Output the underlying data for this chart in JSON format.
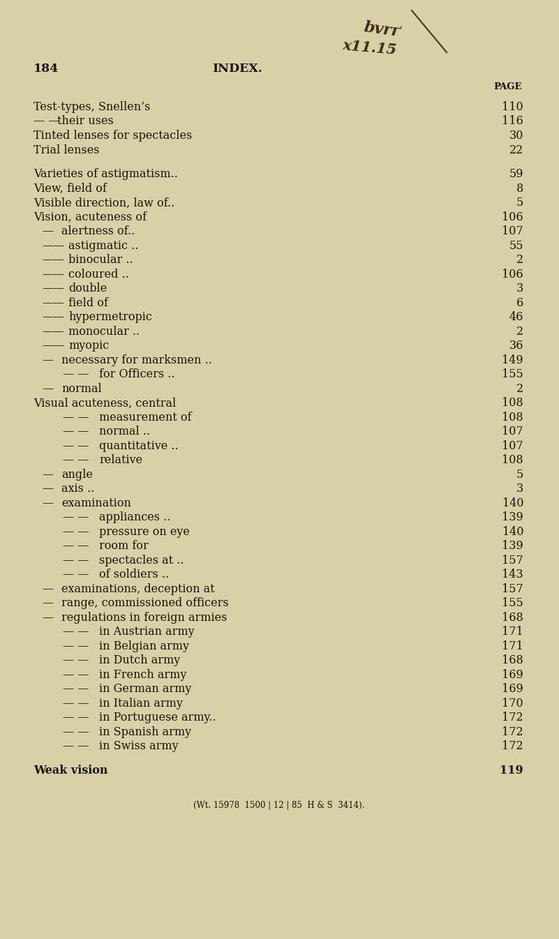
{
  "bg_color": "#d9d0a8",
  "page_number": "184",
  "header_center": "INDEX.",
  "page_label": "PAGE",
  "text_color": "#1a1208",
  "font_size": 11.5,
  "entries": [
    {
      "indent": 0,
      "dash": "",
      "text": "Test-types, Snellen’s",
      "page": "110"
    },
    {
      "indent": 0,
      "dash": "— —",
      "text": "their uses",
      "page": "116"
    },
    {
      "indent": 0,
      "dash": "",
      "text": "Tinted lenses for spectacles",
      "page": "30"
    },
    {
      "indent": 0,
      "dash": "",
      "text": "Trial lenses",
      "page": "22"
    },
    {
      "indent": -1,
      "dash": "",
      "text": "",
      "page": ""
    },
    {
      "indent": 0,
      "dash": "",
      "text": "Varieties of astigmatism..",
      "page": "59"
    },
    {
      "indent": 0,
      "dash": "",
      "text": "View, field of",
      "page": "8"
    },
    {
      "indent": 0,
      "dash": "",
      "text": "Visible direction, law of..",
      "page": "5"
    },
    {
      "indent": 0,
      "dash": "",
      "text": "Vision, acuteness of",
      "page": "106"
    },
    {
      "indent": 1,
      "dash": "—",
      "text": "alertness of..",
      "page": "107"
    },
    {
      "indent": 1,
      "dash": "——",
      "text": "astigmatic ..",
      "page": "55"
    },
    {
      "indent": 1,
      "dash": "——",
      "text": "binocular ..",
      "page": "2"
    },
    {
      "indent": 1,
      "dash": "——",
      "text": "coloured ..",
      "page": "106"
    },
    {
      "indent": 1,
      "dash": "——",
      "text": "double",
      "page": "3"
    },
    {
      "indent": 1,
      "dash": "——",
      "text": "field of",
      "page": "6"
    },
    {
      "indent": 1,
      "dash": "——",
      "text": "hypermetropic",
      "page": "46"
    },
    {
      "indent": 1,
      "dash": "——",
      "text": "monocular ..",
      "page": "2"
    },
    {
      "indent": 1,
      "dash": "——",
      "text": "myopic",
      "page": "36"
    },
    {
      "indent": 1,
      "dash": "—",
      "text": "necessary for marksmen ..",
      "page": "149"
    },
    {
      "indent": 2,
      "dash": "— —",
      "text": "for Officers ..",
      "page": "155"
    },
    {
      "indent": 1,
      "dash": "—",
      "text": "normal",
      "page": "2"
    },
    {
      "indent": 0,
      "dash": "",
      "text": "Visual acuteness, central",
      "page": "108"
    },
    {
      "indent": 2,
      "dash": "— —",
      "text": "measurement of",
      "page": "108"
    },
    {
      "indent": 2,
      "dash": "— —",
      "text": "normal ..",
      "page": "107"
    },
    {
      "indent": 2,
      "dash": "— —",
      "text": "quantitative ..",
      "page": "107"
    },
    {
      "indent": 2,
      "dash": "— —",
      "text": "relative",
      "page": "108"
    },
    {
      "indent": 1,
      "dash": "—",
      "text": "angle",
      "page": "5"
    },
    {
      "indent": 1,
      "dash": "—",
      "text": "axis ..",
      "page": "3"
    },
    {
      "indent": 1,
      "dash": "—",
      "text": "examination",
      "page": "140"
    },
    {
      "indent": 2,
      "dash": "— —",
      "text": "appliances ..",
      "page": "139"
    },
    {
      "indent": 2,
      "dash": "— —",
      "text": "pressure on eye",
      "page": "140"
    },
    {
      "indent": 2,
      "dash": "— —",
      "text": "room for",
      "page": "139"
    },
    {
      "indent": 2,
      "dash": "— —",
      "text": "spectacles at ..",
      "page": "157"
    },
    {
      "indent": 2,
      "dash": "— —",
      "text": "of soldiers ..",
      "page": "143"
    },
    {
      "indent": 1,
      "dash": "—",
      "text": "examinations, deception at",
      "page": "157"
    },
    {
      "indent": 1,
      "dash": "—",
      "text": "range, commissioned officers",
      "page": "155"
    },
    {
      "indent": 1,
      "dash": "—",
      "text": "regulations in foreign armies",
      "page": "168"
    },
    {
      "indent": 2,
      "dash": "— —",
      "text": "in Austrian army",
      "page": "171"
    },
    {
      "indent": 2,
      "dash": "— —",
      "text": "in Belgian army",
      "page": "171"
    },
    {
      "indent": 2,
      "dash": "— —",
      "text": "in Dutch army",
      "page": "168"
    },
    {
      "indent": 2,
      "dash": "— —",
      "text": "in French army",
      "page": "169"
    },
    {
      "indent": 2,
      "dash": "— —",
      "text": "in German army",
      "page": "169"
    },
    {
      "indent": 2,
      "dash": "— —",
      "text": "in Italian army",
      "page": "170"
    },
    {
      "indent": 2,
      "dash": "— —",
      "text": "in Portuguese army..",
      "page": "172"
    },
    {
      "indent": 2,
      "dash": "— —",
      "text": "in Spanish army",
      "page": "172"
    },
    {
      "indent": 2,
      "dash": "— —",
      "text": "in Swiss army",
      "page": "172"
    },
    {
      "indent": -1,
      "dash": "",
      "text": "",
      "page": ""
    },
    {
      "indent": 0,
      "dash": "",
      "text": "Weak vision",
      "page": "119",
      "bold": true
    },
    {
      "indent": -1,
      "dash": "",
      "text": "",
      "page": ""
    },
    {
      "indent": 0,
      "dash": "",
      "text": "(Wt. 15978  1500 | 12 | 85  H & S  3414).",
      "page": "",
      "center": true,
      "small": true
    }
  ]
}
